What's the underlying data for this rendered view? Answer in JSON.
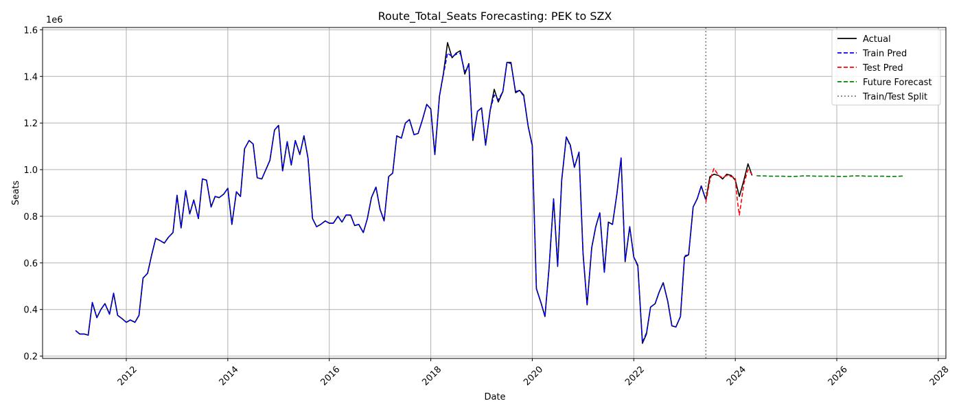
{
  "chart_data": {
    "type": "line",
    "title": "Route_Total_Seats Forecasting: PEK to SZX",
    "xlabel": "Date",
    "ylabel": "Seats",
    "y_scale_label": "1e6",
    "xlim": [
      2010.35,
      2028.15
    ],
    "ylim": [
      0.19,
      1.61
    ],
    "x_ticks": [
      2012,
      2014,
      2016,
      2018,
      2020,
      2022,
      2024,
      2026,
      2028
    ],
    "y_ticks": [
      0.2,
      0.4,
      0.6,
      0.8,
      1.0,
      1.2,
      1.4,
      1.6
    ],
    "y_tick_labels": [
      "0.2",
      "0.4",
      "0.6",
      "0.8",
      "1.0",
      "1.2",
      "1.4",
      "1.6"
    ],
    "grid": true,
    "legend_position": "top-right",
    "split_x": 2023.42,
    "series": [
      {
        "name": "Actual",
        "color": "#000000",
        "style": "solid",
        "x": [
          2011.0,
          2011.08,
          2011.17,
          2011.25,
          2011.33,
          2011.42,
          2011.5,
          2011.58,
          2011.67,
          2011.75,
          2011.83,
          2011.92,
          2012.0,
          2012.08,
          2012.17,
          2012.25,
          2012.33,
          2012.42,
          2012.5,
          2012.58,
          2012.67,
          2012.75,
          2012.83,
          2012.92,
          2013.0,
          2013.08,
          2013.17,
          2013.25,
          2013.33,
          2013.42,
          2013.5,
          2013.58,
          2013.67,
          2013.75,
          2013.83,
          2013.92,
          2014.0,
          2014.08,
          2014.17,
          2014.25,
          2014.33,
          2014.42,
          2014.5,
          2014.58,
          2014.67,
          2014.75,
          2014.83,
          2014.92,
          2015.0,
          2015.08,
          2015.17,
          2015.25,
          2015.33,
          2015.42,
          2015.5,
          2015.58,
          2015.67,
          2015.75,
          2015.83,
          2015.92,
          2016.0,
          2016.08,
          2016.17,
          2016.25,
          2016.33,
          2016.42,
          2016.5,
          2016.58,
          2016.67,
          2016.75,
          2016.83,
          2016.92,
          2017.0,
          2017.08,
          2017.17,
          2017.25,
          2017.33,
          2017.42,
          2017.5,
          2017.58,
          2017.67,
          2017.75,
          2017.83,
          2017.92,
          2018.0,
          2018.08,
          2018.17,
          2018.25,
          2018.33,
          2018.42,
          2018.5,
          2018.58,
          2018.67,
          2018.75,
          2018.83,
          2018.92,
          2019.0,
          2019.08,
          2019.17,
          2019.25,
          2019.33,
          2019.42,
          2019.5,
          2019.58,
          2019.67,
          2019.75,
          2019.83,
          2019.92,
          2020.0,
          2020.08,
          2020.17,
          2020.25,
          2020.33,
          2020.42,
          2020.5,
          2020.58,
          2020.67,
          2020.75,
          2020.83,
          2020.92,
          2021.0,
          2021.08,
          2021.17,
          2021.25,
          2021.33,
          2021.42,
          2021.5,
          2021.58,
          2021.67,
          2021.75,
          2021.83,
          2021.92,
          2022.0,
          2022.08,
          2022.17,
          2022.25,
          2022.33,
          2022.42,
          2022.5,
          2022.58,
          2022.67,
          2022.75,
          2022.83,
          2022.92,
          2023.0,
          2023.08,
          2023.17,
          2023.25,
          2023.33,
          2023.42,
          2023.5,
          2023.58,
          2023.67,
          2023.75,
          2023.83,
          2023.92,
          2024.0,
          2024.08,
          2024.17,
          2024.25,
          2024.33
        ],
        "y": [
          0.31,
          0.295,
          0.295,
          0.29,
          0.43,
          0.365,
          0.4,
          0.425,
          0.38,
          0.47,
          0.375,
          0.36,
          0.345,
          0.355,
          0.345,
          0.375,
          0.535,
          0.555,
          0.635,
          0.705,
          0.695,
          0.685,
          0.71,
          0.73,
          0.89,
          0.75,
          0.91,
          0.81,
          0.87,
          0.79,
          0.96,
          0.955,
          0.84,
          0.885,
          0.88,
          0.895,
          0.92,
          0.765,
          0.905,
          0.885,
          1.09,
          1.125,
          1.11,
          0.965,
          0.96,
          1.0,
          1.04,
          1.17,
          1.19,
          0.995,
          1.12,
          1.02,
          1.125,
          1.065,
          1.145,
          1.05,
          0.79,
          0.755,
          0.765,
          0.78,
          0.77,
          0.77,
          0.8,
          0.775,
          0.805,
          0.805,
          0.76,
          0.765,
          0.73,
          0.79,
          0.88,
          0.925,
          0.83,
          0.78,
          0.97,
          0.985,
          1.145,
          1.135,
          1.2,
          1.215,
          1.15,
          1.155,
          1.21,
          1.28,
          1.26,
          1.065,
          1.315,
          1.415,
          1.545,
          1.48,
          1.5,
          1.51,
          1.41,
          1.455,
          1.125,
          1.25,
          1.265,
          1.105,
          1.255,
          1.345,
          1.29,
          1.335,
          1.46,
          1.46,
          1.33,
          1.34,
          1.32,
          1.185,
          1.105,
          0.49,
          0.43,
          0.37,
          0.575,
          0.875,
          0.585,
          0.955,
          1.14,
          1.105,
          1.01,
          1.075,
          0.64,
          0.42,
          0.665,
          0.755,
          0.815,
          0.56,
          0.775,
          0.765,
          0.9,
          1.05,
          0.605,
          0.755,
          0.625,
          0.59,
          0.255,
          0.295,
          0.41,
          0.425,
          0.475,
          0.515,
          0.435,
          0.33,
          0.325,
          0.37,
          0.625,
          0.635,
          0.84,
          0.875,
          0.93,
          0.87,
          0.97,
          0.98,
          0.975,
          0.96,
          0.98,
          0.975,
          0.955,
          0.885,
          0.955,
          1.025,
          0.975
        ]
      },
      {
        "name": "Train Pred",
        "color": "#0000ff",
        "style": "dashed",
        "x": [
          2011.0,
          2011.08,
          2011.17,
          2011.25,
          2011.33,
          2011.42,
          2011.5,
          2011.58,
          2011.67,
          2011.75,
          2011.83,
          2011.92,
          2012.0,
          2012.08,
          2012.17,
          2012.25,
          2012.33,
          2012.42,
          2012.5,
          2012.58,
          2012.67,
          2012.75,
          2012.83,
          2012.92,
          2013.0,
          2013.08,
          2013.17,
          2013.25,
          2013.33,
          2013.42,
          2013.5,
          2013.58,
          2013.67,
          2013.75,
          2013.83,
          2013.92,
          2014.0,
          2014.08,
          2014.17,
          2014.25,
          2014.33,
          2014.42,
          2014.5,
          2014.58,
          2014.67,
          2014.75,
          2014.83,
          2014.92,
          2015.0,
          2015.08,
          2015.17,
          2015.25,
          2015.33,
          2015.42,
          2015.5,
          2015.58,
          2015.67,
          2015.75,
          2015.83,
          2015.92,
          2016.0,
          2016.08,
          2016.17,
          2016.25,
          2016.33,
          2016.42,
          2016.5,
          2016.58,
          2016.67,
          2016.75,
          2016.83,
          2016.92,
          2017.0,
          2017.08,
          2017.17,
          2017.25,
          2017.33,
          2017.42,
          2017.5,
          2017.58,
          2017.67,
          2017.75,
          2017.83,
          2017.92,
          2018.0,
          2018.08,
          2018.17,
          2018.25,
          2018.33,
          2018.42,
          2018.5,
          2018.58,
          2018.67,
          2018.75,
          2018.83,
          2018.92,
          2019.0,
          2019.08,
          2019.17,
          2019.25,
          2019.33,
          2019.42,
          2019.5,
          2019.58,
          2019.67,
          2019.75,
          2019.83,
          2019.92,
          2020.0,
          2020.08,
          2020.17,
          2020.25,
          2020.33,
          2020.42,
          2020.5,
          2020.58,
          2020.67,
          2020.75,
          2020.83,
          2020.92,
          2021.0,
          2021.08,
          2021.17,
          2021.25,
          2021.33,
          2021.42,
          2021.5,
          2021.58,
          2021.67,
          2021.75,
          2021.83,
          2021.92,
          2022.0,
          2022.08,
          2022.17,
          2022.25,
          2022.33,
          2022.42,
          2022.5,
          2022.58,
          2022.67,
          2022.75,
          2022.83,
          2022.92,
          2023.0,
          2023.08,
          2023.17,
          2023.25,
          2023.33,
          2023.42
        ],
        "y": [
          0.31,
          0.295,
          0.295,
          0.29,
          0.43,
          0.365,
          0.4,
          0.425,
          0.38,
          0.47,
          0.375,
          0.36,
          0.345,
          0.355,
          0.345,
          0.375,
          0.535,
          0.555,
          0.635,
          0.705,
          0.695,
          0.685,
          0.71,
          0.73,
          0.89,
          0.75,
          0.91,
          0.81,
          0.87,
          0.79,
          0.96,
          0.955,
          0.84,
          0.885,
          0.88,
          0.895,
          0.92,
          0.765,
          0.905,
          0.885,
          1.09,
          1.125,
          1.11,
          0.965,
          0.96,
          1.0,
          1.04,
          1.17,
          1.19,
          0.995,
          1.12,
          1.02,
          1.125,
          1.065,
          1.145,
          1.05,
          0.79,
          0.755,
          0.765,
          0.78,
          0.77,
          0.77,
          0.8,
          0.775,
          0.805,
          0.805,
          0.76,
          0.765,
          0.73,
          0.79,
          0.88,
          0.925,
          0.83,
          0.78,
          0.97,
          0.985,
          1.145,
          1.135,
          1.2,
          1.215,
          1.15,
          1.155,
          1.21,
          1.28,
          1.26,
          1.065,
          1.315,
          1.41,
          1.5,
          1.485,
          1.495,
          1.5,
          1.42,
          1.45,
          1.13,
          1.25,
          1.265,
          1.105,
          1.255,
          1.32,
          1.3,
          1.335,
          1.46,
          1.455,
          1.335,
          1.34,
          1.315,
          1.185,
          1.1,
          0.49,
          0.43,
          0.37,
          0.575,
          0.875,
          0.59,
          0.955,
          1.14,
          1.1,
          1.01,
          1.075,
          0.64,
          0.42,
          0.665,
          0.755,
          0.815,
          0.56,
          0.77,
          0.765,
          0.9,
          1.05,
          0.61,
          0.755,
          0.625,
          0.585,
          0.26,
          0.3,
          0.41,
          0.425,
          0.475,
          0.515,
          0.435,
          0.33,
          0.325,
          0.37,
          0.63,
          0.635,
          0.84,
          0.875,
          0.93,
          0.87
        ]
      },
      {
        "name": "Test Pred",
        "color": "#ff0000",
        "style": "dashed",
        "x": [
          2023.42,
          2023.5,
          2023.58,
          2023.67,
          2023.75,
          2023.83,
          2023.92,
          2024.0,
          2024.04,
          2024.08,
          2024.17,
          2024.25,
          2024.33
        ],
        "y": [
          0.86,
          0.955,
          1.005,
          0.975,
          0.965,
          0.975,
          0.97,
          0.965,
          0.87,
          0.805,
          0.94,
          1.0,
          0.98
        ]
      },
      {
        "name": "Future Forecast",
        "color": "#008000",
        "style": "dashed",
        "x": [
          2024.42,
          2024.5,
          2024.58,
          2024.67,
          2024.75,
          2024.83,
          2024.92,
          2025.0,
          2025.08,
          2025.17,
          2025.25,
          2025.33,
          2025.42,
          2025.5,
          2025.58,
          2025.67,
          2025.75,
          2025.83,
          2025.92,
          2026.0,
          2026.08,
          2026.17,
          2026.25,
          2026.33,
          2026.42,
          2026.5,
          2026.58,
          2026.67,
          2026.75,
          2026.83,
          2026.92,
          2027.0,
          2027.08,
          2027.17,
          2027.25,
          2027.33
        ],
        "y": [
          0.974,
          0.973,
          0.973,
          0.972,
          0.972,
          0.972,
          0.972,
          0.971,
          0.971,
          0.971,
          0.972,
          0.973,
          0.973,
          0.973,
          0.972,
          0.972,
          0.972,
          0.972,
          0.972,
          0.971,
          0.971,
          0.971,
          0.972,
          0.973,
          0.973,
          0.973,
          0.972,
          0.972,
          0.972,
          0.972,
          0.972,
          0.971,
          0.971,
          0.971,
          0.972,
          0.973
        ]
      }
    ],
    "legend": [
      {
        "label": "Actual",
        "color": "#000000",
        "style": "solid"
      },
      {
        "label": "Train Pred",
        "color": "#0000ff",
        "style": "dashed"
      },
      {
        "label": "Test Pred",
        "color": "#ff0000",
        "style": "dashed"
      },
      {
        "label": "Future Forecast",
        "color": "#008000",
        "style": "dashed"
      },
      {
        "label": "Train/Test Split",
        "color": "#808080",
        "style": "dotted"
      }
    ]
  }
}
